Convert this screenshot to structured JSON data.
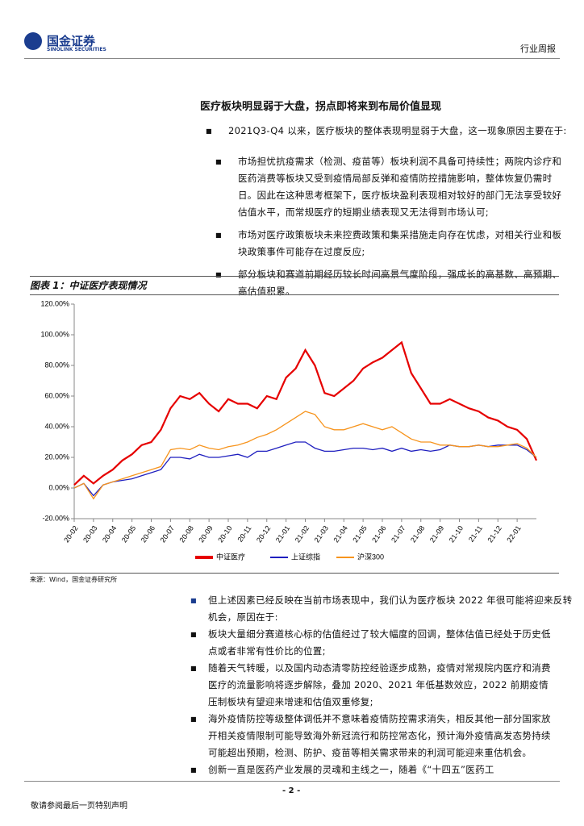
{
  "header": {
    "logo_cn": "国金证券",
    "logo_en": "SINOLINK SECURITIES",
    "report_type": "行业周报"
  },
  "section": {
    "heading": "医疗板块明显弱于大盘，拐点即将来到布局价值显现",
    "intro": "2021Q3-Q4 以来，医疗板块的整体表现明显弱于大盘，这一现象原因主要在于:",
    "bullets": [
      "市场担忧抗疫需求（检测、疫苗等）板块利润不具备可持续性；两院内诊疗和医药消费等板块又受到疫情局部反弹和疫情防控措施影响，整体恢复仍需时日。因此在这种思考框架下，医疗板块盈利表现相对较好的部门无法享受较好估值水平，而常规医疗的短期业绩表现又无法得到市场认可;",
      "市场对医疗政策板块未来控费政策和集采措施走向存在忧虑，对相关行业和板块政策事件可能存在过度反应;",
      "部分板块和赛道前期经历较长时间高景气度阶段，强成长的高基数、高预期、高估值积累。"
    ]
  },
  "figure": {
    "title": "图表 1：中证医疗表现情况",
    "source": "来源：Wind，国金证券研究所"
  },
  "chart_data": {
    "type": "line",
    "categories": [
      "20-02",
      null,
      "20-03",
      null,
      "20-04",
      null,
      "20-05",
      null,
      "20-06",
      null,
      "20-07",
      null,
      "20-08",
      null,
      "20-09",
      null,
      "20-10",
      null,
      "20-11",
      null,
      "20-12",
      null,
      "21-01",
      null,
      "21-02",
      null,
      "21-03",
      null,
      "21-04",
      null,
      "21-05",
      null,
      "21-06",
      null,
      "21-07",
      null,
      "21-08",
      null,
      "21-09",
      null,
      "21-10",
      null,
      "21-11",
      null,
      "21-12",
      null,
      "22-01",
      null,
      null
    ],
    "series": [
      {
        "name": "中证医疗",
        "color": "#e60000",
        "values": [
          2,
          8,
          3,
          8,
          12,
          18,
          22,
          28,
          30,
          38,
          52,
          60,
          58,
          62,
          55,
          50,
          58,
          55,
          55,
          52,
          60,
          58,
          72,
          78,
          90,
          80,
          62,
          60,
          65,
          70,
          78,
          82,
          85,
          90,
          95,
          75,
          65,
          55,
          55,
          58,
          55,
          52,
          50,
          46,
          44,
          40,
          38,
          32,
          18
        ]
      },
      {
        "name": "上证综指",
        "color": "#1f1fbf",
        "values": [
          0,
          3,
          -5,
          2,
          4,
          5,
          6,
          8,
          10,
          12,
          20,
          20,
          19,
          22,
          20,
          20,
          21,
          22,
          20,
          24,
          24,
          26,
          28,
          30,
          30,
          26,
          24,
          24,
          25,
          26,
          26,
          25,
          26,
          24,
          26,
          24,
          25,
          24,
          25,
          28,
          27,
          27,
          28,
          27,
          28,
          28,
          28,
          25,
          20
        ]
      },
      {
        "name": "沪深300",
        "color": "#f7941d",
        "values": [
          0,
          3,
          -7,
          2,
          4,
          6,
          8,
          10,
          12,
          14,
          25,
          26,
          25,
          28,
          26,
          25,
          27,
          28,
          30,
          33,
          35,
          38,
          42,
          46,
          50,
          48,
          40,
          38,
          38,
          40,
          42,
          40,
          38,
          40,
          36,
          32,
          30,
          30,
          28,
          28,
          27,
          27,
          28,
          27,
          27,
          28,
          29,
          26,
          20
        ]
      }
    ],
    "ylim": [
      -20,
      120
    ],
    "yticks": [
      {
        "value": -20,
        "label": "-20.00%"
      },
      {
        "value": 0,
        "label": "0.00%"
      },
      {
        "value": 20,
        "label": "20.00%"
      },
      {
        "value": 40,
        "label": "40.00%"
      },
      {
        "value": 60,
        "label": "60.00%"
      },
      {
        "value": 80,
        "label": "80.00%"
      },
      {
        "value": 100,
        "label": "100.00%"
      },
      {
        "value": 120,
        "label": "120.00%"
      }
    ],
    "grid": false
  },
  "section2": {
    "intro": "但上述因素已经反映在当前市场表现中，我们认为医疗板块 2022 年很可能将迎来反转机会，原因在于:",
    "bullets": [
      "板块大量细分赛道核心标的估值经过了较大幅度的回调，整体估值已经处于历史低点或者非常有性价比的位置;",
      "随着天气转暖，以及国内动态清零防控经验逐步成熟，疫情对常规院内医疗和消费医疗的流量影响将逐步解除，叠加 2020、2021 年低基数效应，2022 前期疫情压制板块有望迎来增速和估值双重修复;",
      "海外疫情防控等级整体调低并不意味着疫情防控需求消失，相反其他一部分国家放开相关疫情限制可能导致海外新冠流行和防控常态化，预计海外疫情高发态势持续可能超出预期，检测、防护、疫苗等相关需求带来的利润可能迎来重估机会。",
      "创新一直是医药产业发展的灵魂和主线之一，随着《“十四五”医药工"
    ]
  },
  "footer": {
    "page": "- 2 -",
    "disclaimer": "敬请参阅最后一页特别声明"
  }
}
